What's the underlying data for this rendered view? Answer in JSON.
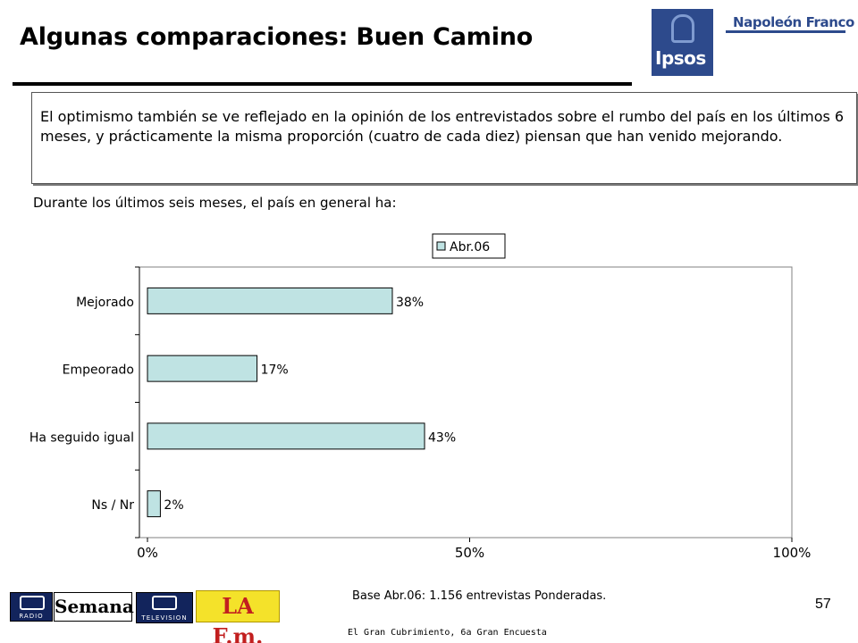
{
  "title": "Algunas comparaciones: Buen Camino",
  "logos": {
    "ipsos": "Ipsos",
    "napoleon_franco": "Napoleón Franco",
    "rcn_radio": "RADIO",
    "semana": "Semana",
    "rcn_tv": "TELEVISION",
    "lafm": "LA F.m."
  },
  "description": "El optimismo también se ve reflejado en la opinión de los entrevistados sobre el rumbo del país en los últimos 6 meses, y prácticamente la misma proporción (cuatro de cada diez) piensan que han venido mejorando.",
  "subtitle": "Durante los últimos seis meses, el país en general ha:",
  "chart_data": {
    "type": "bar",
    "orientation": "horizontal",
    "categories": [
      "Mejorado",
      "Empeorado",
      "Ha seguido igual",
      "Ns / Nr"
    ],
    "series": [
      {
        "name": "Abr.06",
        "values": [
          38,
          17,
          43,
          2
        ],
        "color": "#bfe3e3"
      }
    ],
    "data_labels": [
      "38%",
      "17%",
      "43%",
      "2%"
    ],
    "xlim": [
      0,
      100
    ],
    "x_ticks": [
      "0%",
      "50%",
      "100%"
    ],
    "grid": false,
    "legend_position": "top"
  },
  "base_note": "Base Abr.06: 1.156 entrevistas Ponderadas.",
  "page_number": "57",
  "footer": "El Gran Cubrimiento, 6a Gran Encuesta"
}
